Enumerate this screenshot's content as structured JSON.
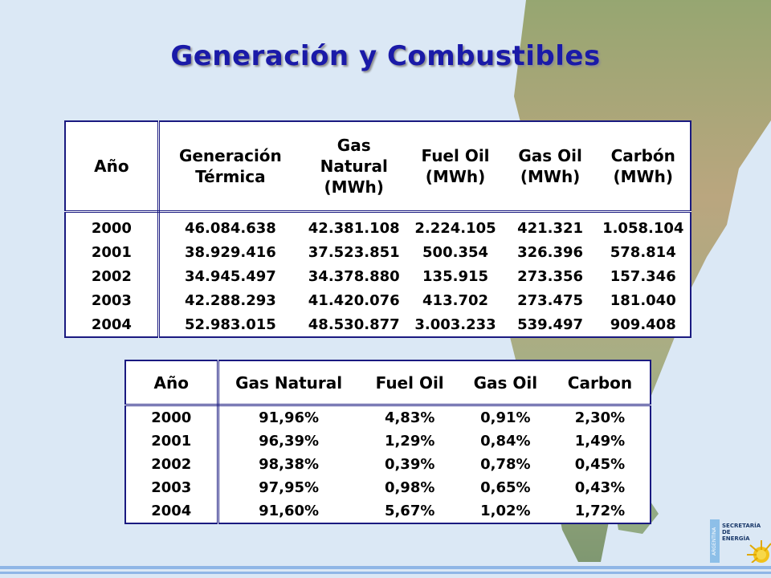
{
  "title": "Generación y Combustibles",
  "table1": {
    "headers": [
      "Año",
      "Generación Térmica",
      "Gas Natural (MWh)",
      "Fuel Oil (MWh)",
      "Gas Oil (MWh)",
      "Carbón (MWh)"
    ],
    "header_lines": [
      [
        "Año"
      ],
      [
        "Generación",
        "Térmica"
      ],
      [
        "Gas",
        "Natural",
        "(MWh)"
      ],
      [
        "Fuel Oil",
        "(MWh)"
      ],
      [
        "Gas Oil",
        "(MWh)"
      ],
      [
        "Carbón",
        "(MWh)"
      ]
    ],
    "rows": [
      [
        "2000",
        "46.084.638",
        "42.381.108",
        "2.224.105",
        "421.321",
        "1.058.104"
      ],
      [
        "2001",
        "38.929.416",
        "37.523.851",
        "500.354",
        "326.396",
        "578.814"
      ],
      [
        "2002",
        "34.945.497",
        "34.378.880",
        "135.915",
        "273.356",
        "157.346"
      ],
      [
        "2003",
        "42.288.293",
        "41.420.076",
        "413.702",
        "273.475",
        "181.040"
      ],
      [
        "2004",
        "52.983.015",
        "48.530.877",
        "3.003.233",
        "539.497",
        "909.408"
      ]
    ]
  },
  "table2": {
    "headers": [
      "Año",
      "Gas Natural",
      "Fuel Oil",
      "Gas Oil",
      "Carbon"
    ],
    "rows": [
      [
        "2000",
        "91,96%",
        "4,83%",
        "0,91%",
        "2,30%"
      ],
      [
        "2001",
        "96,39%",
        "1,29%",
        "0,84%",
        "1,49%"
      ],
      [
        "2002",
        "98,38%",
        "0,39%",
        "0,78%",
        "0,45%"
      ],
      [
        "2003",
        "97,95%",
        "0,98%",
        "0,65%",
        "0,43%"
      ],
      [
        "2004",
        "91,60%",
        "5,67%",
        "1,02%",
        "1,72%"
      ]
    ]
  },
  "logo": {
    "stripe_text": "ARGENTINA",
    "lines": [
      "SECRETARÍA",
      "DE",
      "ENERGÍA"
    ]
  },
  "colors": {
    "title": "#1a1aa8",
    "table_border": "#1a1a80",
    "background": "#dbe8f5",
    "ocean_lines": "#8fb6e6"
  }
}
